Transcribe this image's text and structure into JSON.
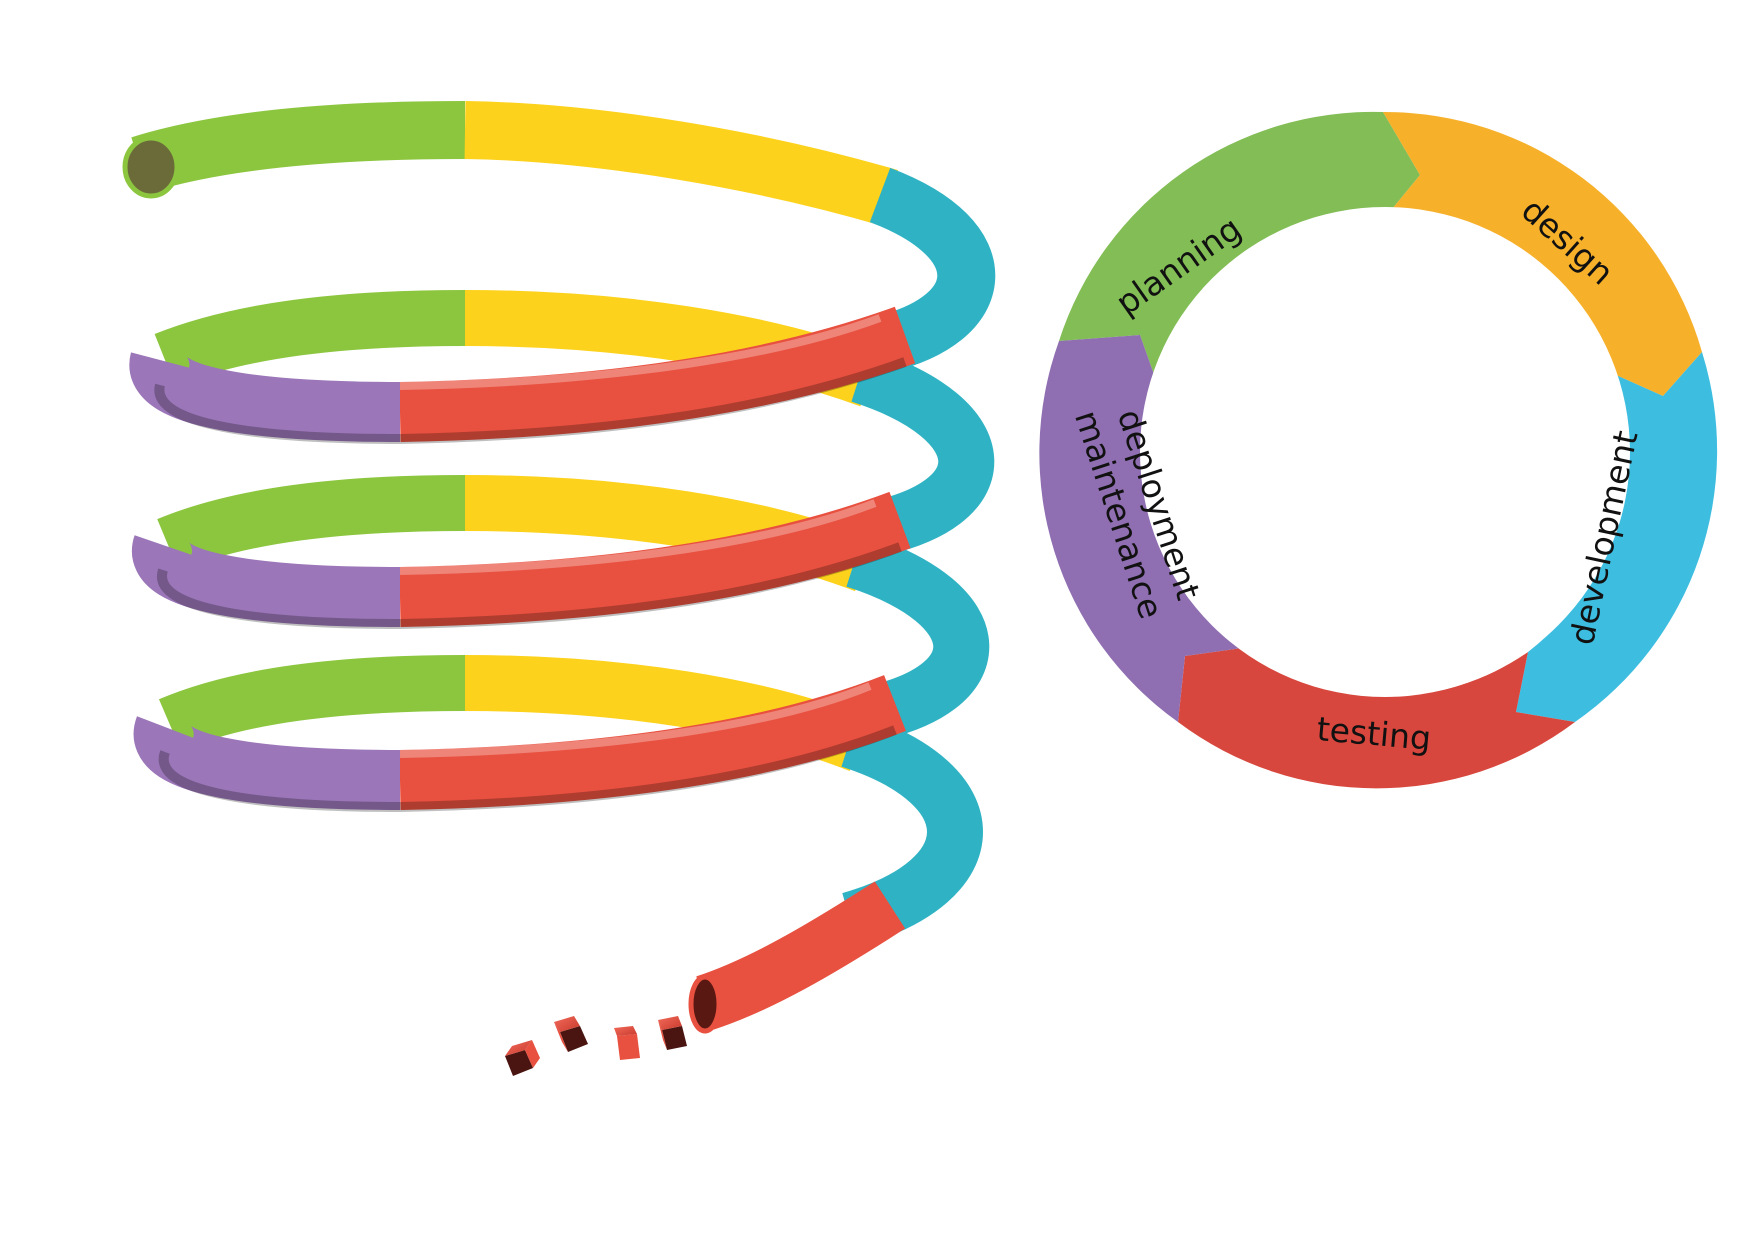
{
  "colors": {
    "planning": "#82bd55",
    "design": "#f7b02a",
    "development": "#3dbde0",
    "testing": "#d8473d",
    "deployment_maintenance": "#8f6fb1",
    "spiral_green": "#8cc63f",
    "spiral_yellow": "#fcd21c",
    "spiral_cyan": "#2fb3c4",
    "spiral_red": "#e8503f",
    "spiral_purple": "#9b76b8"
  },
  "cycle": {
    "stages": [
      {
        "key": "planning",
        "label": "planning"
      },
      {
        "key": "design",
        "label": "design"
      },
      {
        "key": "development",
        "label": "development"
      },
      {
        "key": "testing",
        "label": "testing"
      },
      {
        "key": "deployment",
        "label_line1": "deployment",
        "label_line2": "maintenance"
      }
    ]
  },
  "spiral": {
    "coil_count": 4,
    "segment_order": [
      "green",
      "yellow",
      "cyan",
      "red",
      "purple"
    ],
    "trailing_blocks": 4
  }
}
